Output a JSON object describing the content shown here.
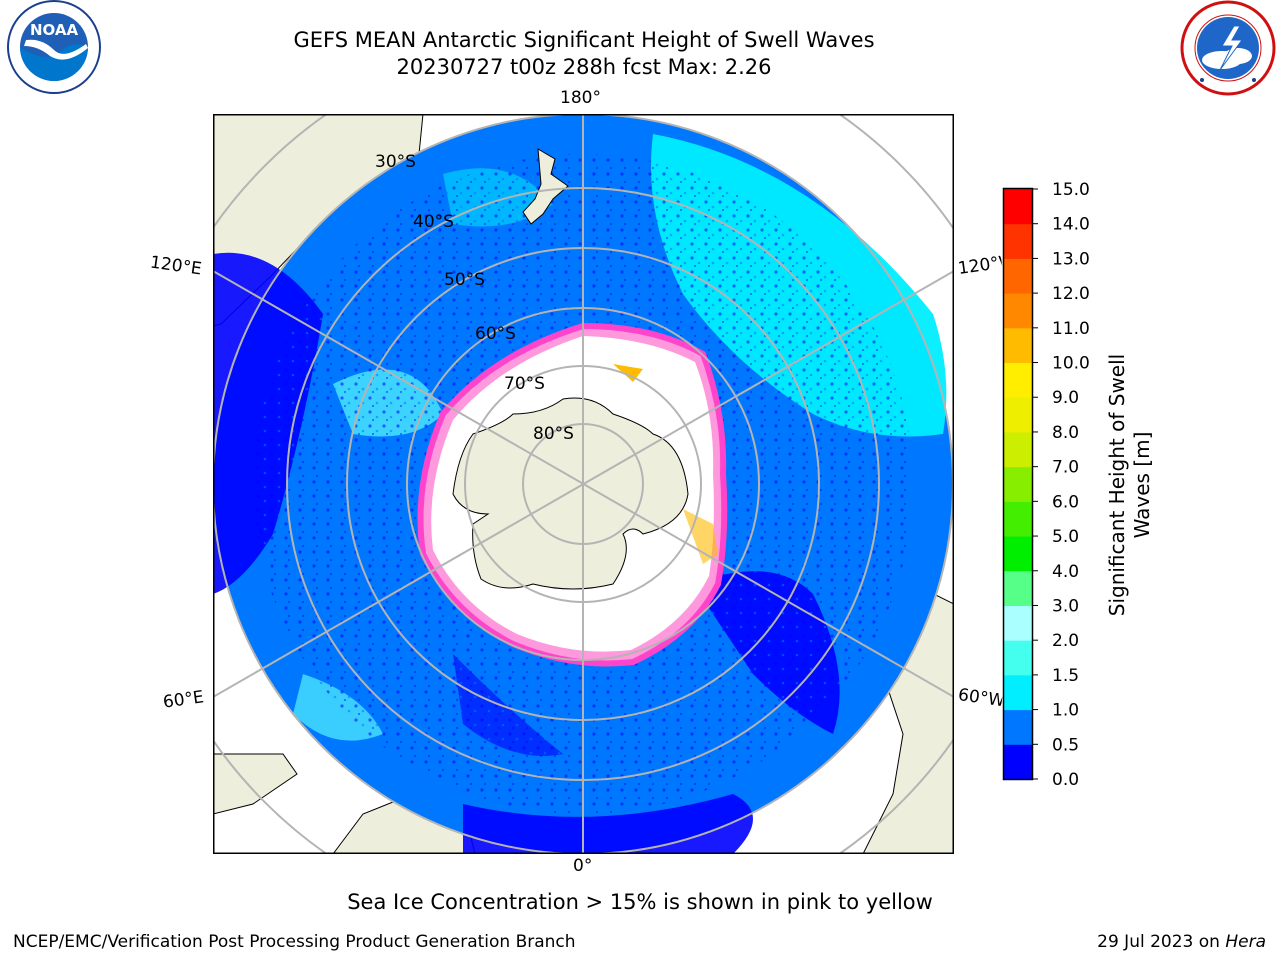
{
  "header": {
    "title_line1": "GEFS MEAN Antarctic Significant Height of Swell Waves",
    "title_line2": "20230727 t00z 288h fcst   Max: 2.26"
  },
  "logos": {
    "noaa": {
      "text": "NOAA",
      "ring_text": "NATIONAL OCEANIC AND ATMOSPHERIC ADMINISTRATION · U.S. DEPARTMENT OF COMMERCE"
    },
    "nws": {
      "ring_text": "NATIONAL WEATHER SERVICE"
    }
  },
  "map": {
    "projection": "south-polar-stereographic",
    "longitude_labels": {
      "top": "180°",
      "bottom": "0°",
      "left_upper": "120°E",
      "left_lower": "60°E",
      "right_upper": "120°W",
      "right_lower": "60°W"
    },
    "latitude_labels": [
      "30°S",
      "40°S",
      "50°S",
      "60°S",
      "70°S",
      "80°S"
    ],
    "colors": {
      "land": "#eeeedc",
      "ice_edge": "#ff66cc",
      "ice_core": "#ffffff",
      "gridline": "#b4b4b4"
    }
  },
  "colorbar": {
    "label": "Significant Height of Swell Waves [m]",
    "label_line1": "Significant Height of Swell",
    "label_line2": "Waves [m]",
    "ticks": [
      "0.0",
      "0.5",
      "1.0",
      "1.5",
      "2.0",
      "3.0",
      "4.0",
      "5.0",
      "6.0",
      "7.0",
      "8.0",
      "9.0",
      "10.0",
      "11.0",
      "12.0",
      "13.0",
      "14.0",
      "15.0"
    ],
    "colors": [
      "#0000ff",
      "#0077ff",
      "#00eeff",
      "#44ffee",
      "#aaffff",
      "#55ff88",
      "#00ee00",
      "#44ee00",
      "#88ee00",
      "#ccee00",
      "#eeee00",
      "#ffee00",
      "#ffbb00",
      "#ff8800",
      "#ff6600",
      "#ff3300",
      "#ff0000"
    ]
  },
  "footer": {
    "note": "Sea Ice Concentration > 15% is shown in pink to yellow",
    "left": "NCEP/EMC/Verification Post Processing Product Generation Branch",
    "right_date": "29 Jul 2023 on",
    "right_host": "Hera"
  }
}
